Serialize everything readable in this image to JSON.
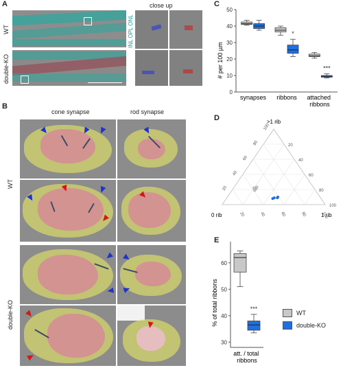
{
  "panel_A": {
    "label": "A",
    "row_wt": "WT",
    "row_dko": "double-KO",
    "layers_text": "INL OPL ONL",
    "closeup_title": "close up"
  },
  "panel_B": {
    "label": "B",
    "col_cone": "cone synapse",
    "col_rod": "rod synapse",
    "row_wt": "WT",
    "row_dko": "double-KO"
  },
  "colors": {
    "wt": "#c8c8c8",
    "dko": "#1f6fe0",
    "pedicle": "#d6d66c",
    "synapse": "#d68c96"
  },
  "panel_C": {
    "label": "C",
    "chart_data": {
      "type": "box",
      "ylabel": "# per 100 µm",
      "ylim": [
        0,
        50
      ],
      "yticks": [
        0,
        10,
        20,
        30,
        40,
        50
      ],
      "categories": [
        "synapses",
        "ribbons",
        "attached ribbons"
      ],
      "series": [
        {
          "name": "WT",
          "boxes": [
            {
              "min": 40.5,
              "q1": 41,
              "median": 41.5,
              "q3": 42.5,
              "max": 43.5
            },
            {
              "min": 34.5,
              "q1": 36.5,
              "median": 37.5,
              "q3": 39,
              "max": 40
            },
            {
              "min": 20.5,
              "q1": 21.5,
              "median": 22,
              "q3": 23,
              "max": 24
            }
          ]
        },
        {
          "name": "double-KO",
          "boxes": [
            {
              "min": 37.5,
              "q1": 38.5,
              "median": 40,
              "q3": 41.5,
              "max": 43.5
            },
            {
              "min": 21.5,
              "q1": 23.5,
              "median": 25.5,
              "q3": 28.5,
              "max": 32
            },
            {
              "min": 8.5,
              "q1": 9,
              "median": 9.5,
              "q3": 10,
              "max": 11
            }
          ]
        }
      ],
      "significance": [
        "",
        "*",
        "***"
      ]
    }
  },
  "panel_D": {
    "label": "D",
    "chart_data": {
      "type": "ternary",
      "corner_top": ">1 rib",
      "corner_left": "0 rib",
      "corner_right": "1 rib",
      "ticks": [
        "20",
        "40",
        "60",
        "80",
        "100"
      ],
      "series": [
        {
          "name": "WT",
          "points": [
            [
              21,
              57,
              22
            ],
            [
              23,
              55,
              22
            ],
            [
              19,
              59,
              22
            ],
            [
              22,
              58,
              20
            ]
          ]
        },
        {
          "name": "double-KO",
          "points": [
            [
              9,
              45,
              46
            ],
            [
              10,
              41,
              49
            ],
            [
              8,
              47,
              45
            ],
            [
              9,
              42,
              49
            ]
          ]
        }
      ]
    }
  },
  "panel_E": {
    "label": "E",
    "chart_data": {
      "type": "box",
      "ylabel": "% of total ribbons",
      "ylim": [
        28,
        68
      ],
      "yticks": [
        30,
        40,
        50,
        60
      ],
      "categories": [
        "att. / total ribbons"
      ],
      "series": [
        {
          "name": "WT",
          "boxes": [
            {
              "min": 51,
              "q1": 56.5,
              "median": 62,
              "q3": 63.5,
              "max": 64.5
            }
          ]
        },
        {
          "name": "double-KO",
          "boxes": [
            {
              "min": 33.5,
              "q1": 34.5,
              "median": 36.5,
              "q3": 38,
              "max": 40.5
            }
          ]
        }
      ],
      "significance": [
        "***"
      ]
    }
  },
  "legend": {
    "items": [
      {
        "label": "WT",
        "color": "#c8c8c8"
      },
      {
        "label": "double-KO",
        "color": "#1f6fe0"
      }
    ]
  }
}
